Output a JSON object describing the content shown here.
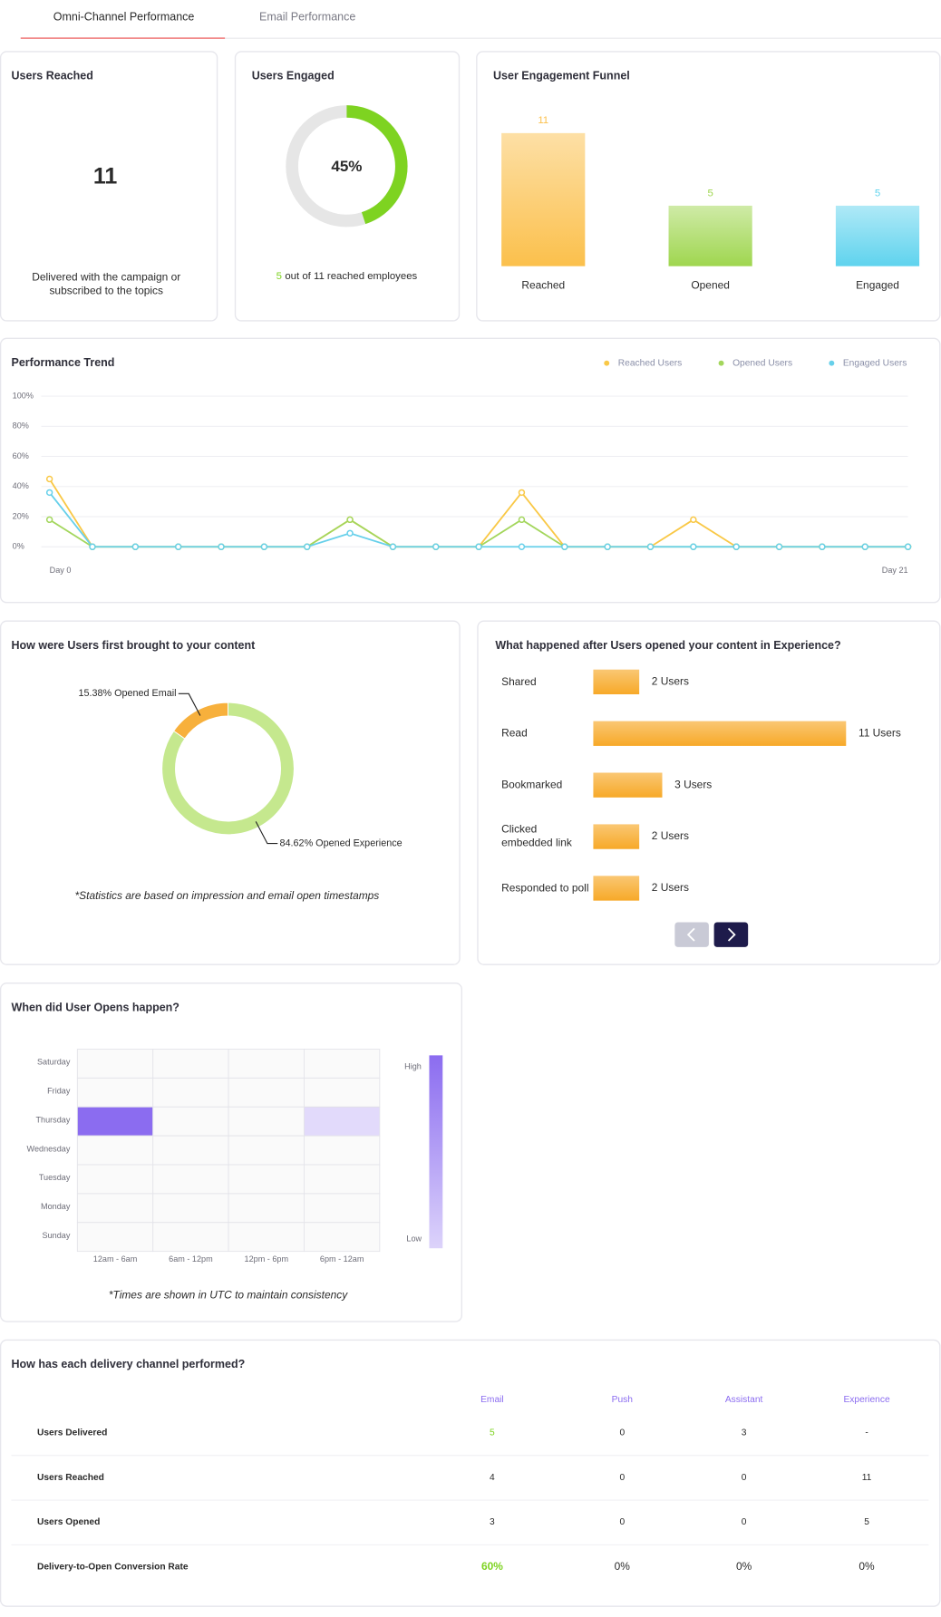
{
  "tabs": [
    "Omni-Channel Performance",
    "Email Performance"
  ],
  "users_reached": {
    "title": "Users Reached",
    "value": 11,
    "caption": "Delivered with the campaign or subscribed to the topics"
  },
  "users_engaged": {
    "title": "Users Engaged",
    "percent": 45,
    "percent_label": "45%",
    "count": 5,
    "caption": "out of 11 reached employees"
  },
  "chart_data": [
    {
      "type": "bar",
      "title": "User Engagement Funnel",
      "categories": [
        "Reached",
        "Opened",
        "Engaged"
      ],
      "values": [
        11,
        5,
        5
      ],
      "colors": [
        "#fbc04c",
        "#9fd64f",
        "#5fd3ee"
      ]
    },
    {
      "type": "line",
      "title": "Performance Trend",
      "categories": [
        "Day 0",
        null,
        null,
        null,
        null,
        null,
        null,
        null,
        null,
        null,
        null,
        null,
        null,
        null,
        null,
        null,
        null,
        null,
        null,
        null,
        "Day 21"
      ],
      "series": [
        {
          "name": "Reached Users",
          "color": "#f9c846",
          "values": [
            45,
            0,
            0,
            0,
            0,
            0,
            0,
            18,
            0,
            0,
            0,
            36,
            0,
            0,
            0,
            18,
            0,
            0,
            0,
            0,
            0
          ]
        },
        {
          "name": "Opened Users",
          "color": "#a3d65c",
          "values": [
            18,
            0,
            0,
            0,
            0,
            0,
            0,
            18,
            0,
            0,
            0,
            18,
            0,
            0,
            0,
            0,
            0,
            0,
            0,
            0,
            0
          ]
        },
        {
          "name": "Engaged Users",
          "color": "#67d0ea",
          "values": [
            36,
            0,
            0,
            0,
            0,
            0,
            0,
            9,
            0,
            0,
            0,
            0,
            0,
            0,
            0,
            0,
            0,
            0,
            0,
            0,
            0
          ]
        }
      ],
      "ylim": [
        0,
        100
      ],
      "yticks": [
        {
          "value": 0,
          "label": "0%"
        },
        {
          "value": 20,
          "label": "20%"
        },
        {
          "value": 40,
          "label": "40%"
        },
        {
          "value": 60,
          "label": "60%"
        },
        {
          "value": 80,
          "label": "80%"
        },
        {
          "value": 100,
          "label": "100%"
        }
      ],
      "grid": true,
      "legend": "top-right"
    },
    {
      "type": "pie",
      "title": "How were Users first brought to your content",
      "values": [
        15.38,
        84.62
      ],
      "value_labels": [
        "15.38% Opened Email",
        "84.62% Opened Experience"
      ],
      "colors": [
        "#f7b03c",
        "#c5e88e"
      ],
      "donut": true,
      "note": "*Statistics are based on impression and email open timestamps"
    },
    {
      "type": "hbar",
      "title": "What happened after Users opened your content in Experience?",
      "categories": [
        "Shared",
        "Read",
        "Bookmarked",
        "Clicked embedded link",
        "Responded to poll"
      ],
      "values": [
        2,
        11,
        3,
        2,
        2
      ],
      "value_labels": [
        "2 Users",
        "11 Users",
        "3 Users",
        "2 Users",
        "2 Users"
      ],
      "color": "#f7a928"
    },
    {
      "type": "heatmap",
      "title": "When did User Opens happen?",
      "x_categories": [
        "12am - 6am",
        "6am - 12pm",
        "12pm - 6pm",
        "6pm - 12am"
      ],
      "y_categories": [
        "Saturday",
        "Friday",
        "Thursday",
        "Wednesday",
        "Tuesday",
        "Monday",
        "Sunday"
      ],
      "values": [
        [
          0,
          0,
          0,
          0
        ],
        [
          0,
          0,
          0,
          0
        ],
        [
          4,
          0,
          0,
          1
        ],
        [
          0,
          0,
          0,
          0
        ],
        [
          0,
          0,
          0,
          0
        ],
        [
          0,
          0,
          0,
          0
        ],
        [
          0,
          0,
          0,
          0
        ]
      ],
      "color": "#8b6cf0",
      "scale_labels": [
        "High",
        "Low"
      ],
      "note": "*Times are shown in UTC to maintain consistency"
    }
  ],
  "table": {
    "title": "How has each delivery channel performed?",
    "columns": [
      "Email",
      "Push",
      "Assistant",
      "Experience"
    ],
    "rows": [
      {
        "label": "Users Delivered",
        "cells": [
          5,
          0,
          3,
          "-"
        ]
      },
      {
        "label": "Users Reached",
        "cells": [
          4,
          0,
          0,
          11
        ]
      },
      {
        "label": "Users Opened",
        "cells": [
          3,
          0,
          0,
          5
        ]
      },
      {
        "label": "Delivery-to-Open Conversion Rate",
        "cells": [
          "60%",
          "0%",
          "0%",
          "0%"
        ]
      }
    ]
  }
}
